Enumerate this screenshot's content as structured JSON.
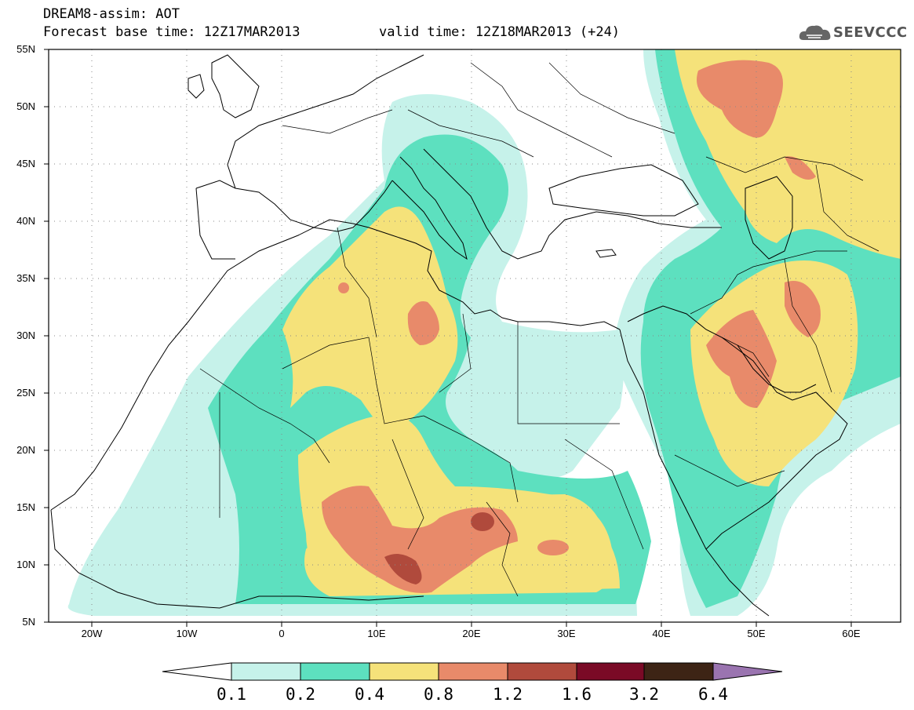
{
  "header": {
    "title": "DREAM8-assim: AOT",
    "base_time": "Forecast base time: 12Z17MAR2013",
    "valid_time": "valid time: 12Z18MAR2013 (+24)",
    "logo_text": "SEEVCCC"
  },
  "map": {
    "lat_labels": [
      "55N",
      "50N",
      "45N",
      "40N",
      "35N",
      "30N",
      "25N",
      "20N",
      "15N",
      "10N",
      "5N"
    ],
    "lon_labels": [
      "20W",
      "10W",
      "0",
      "10E",
      "20E",
      "30E",
      "40E",
      "50E",
      "60E"
    ],
    "grid": true,
    "extent": {
      "lon_min": -25,
      "lon_max": 65,
      "lat_min": 5,
      "lat_max": 55
    }
  },
  "legend": {
    "levels": [
      "0.1",
      "0.2",
      "0.4",
      "0.8",
      "1.2",
      "1.6",
      "3.2",
      "6.4"
    ],
    "colors": [
      "#ffffff",
      "#c6f2ea",
      "#5de0bf",
      "#f5e27a",
      "#e88a6a",
      "#b04a3c",
      "#7a0a26",
      "#3d2415",
      "#9a74b0"
    ]
  }
}
